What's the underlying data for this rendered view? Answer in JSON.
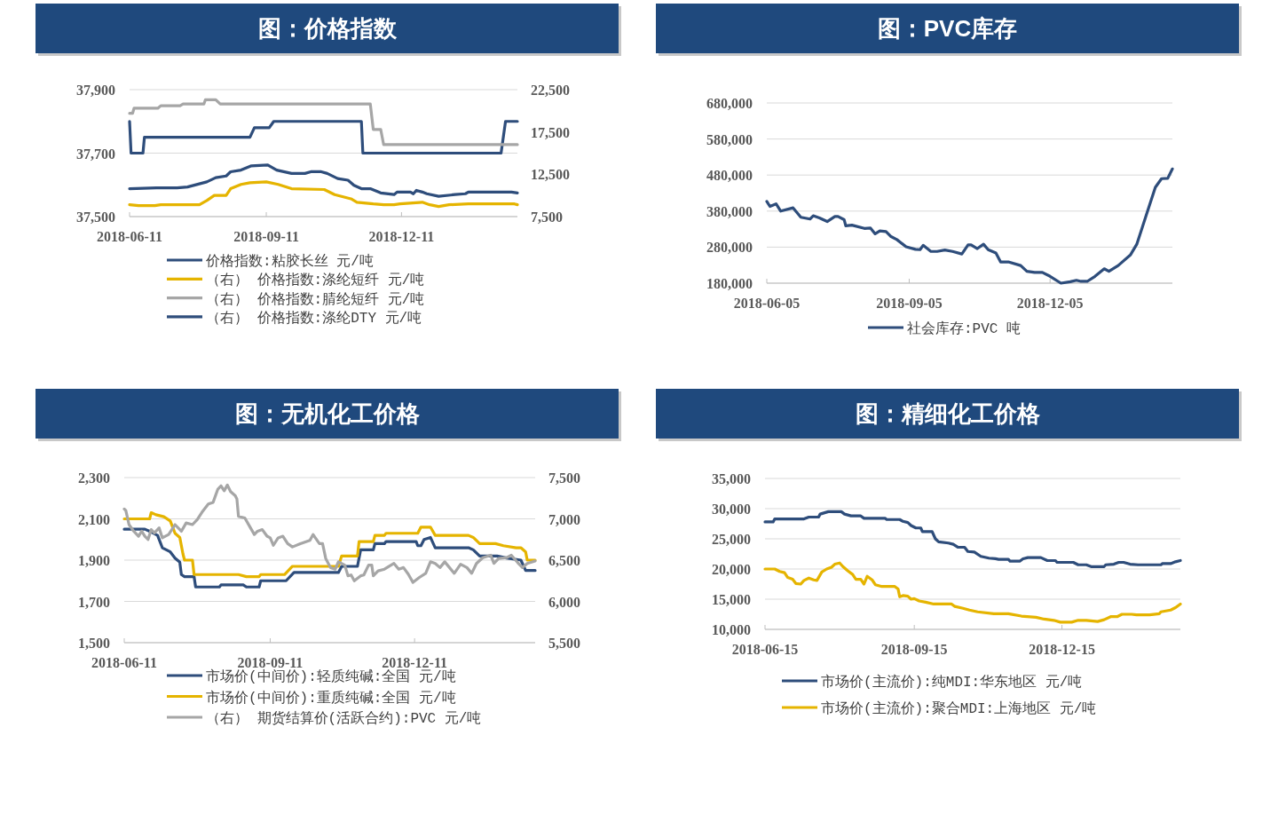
{
  "chart_data": [
    {
      "type": "line",
      "title": "图：价格指数",
      "legend": "bottom",
      "grid": "y",
      "xlim": [
        "2018-06-11",
        "2019-02-27"
      ],
      "xticks": [
        "2018-06-11",
        "2018-09-11",
        "2018-12-11"
      ],
      "ylim": [
        37500,
        37900
      ],
      "yticks": [
        {
          "value": 37500,
          "label": "37,500"
        },
        {
          "value": 37700,
          "label": "37,700"
        },
        {
          "value": 37900,
          "label": "37,900"
        }
      ],
      "y2lim": [
        7500,
        22500
      ],
      "y2ticks": [
        {
          "value": 7500,
          "label": "7,500"
        },
        {
          "value": 12500,
          "label": "12,500"
        },
        {
          "value": 17500,
          "label": "17,500"
        },
        {
          "value": 22500,
          "label": "22,500"
        }
      ],
      "series": [
        {
          "name": "价格指数:粘胶长丝 元/吨",
          "color": "#2e4d7b",
          "x": [
            "2018-06-11",
            "2018-06-12",
            "2018-06-20",
            "2018-06-21",
            "2018-08-31",
            "2018-09-03",
            "2018-09-13",
            "2018-09-16",
            "2018-11-14",
            "2018-11-15",
            "2019-02-16",
            "2019-02-19",
            "2019-02-27"
          ],
          "values": [
            37800,
            37700,
            37700,
            37750,
            37750,
            37780,
            37780,
            37800,
            37800,
            37700,
            37700,
            37800,
            37800
          ]
        },
        {
          "name": "（右） 价格指数:涤纶短纤 元/吨",
          "color": "#e5b400",
          "axis": "y2",
          "x": [
            "2018-06-11",
            "2018-06-17",
            "2018-06-28",
            "2018-07-02",
            "2018-07-15",
            "2018-07-20",
            "2018-07-28",
            "2018-08-02",
            "2018-08-07",
            "2018-08-15",
            "2018-08-18",
            "2018-08-25",
            "2018-08-31",
            "2018-09-11",
            "2018-09-19",
            "2018-09-28",
            "2018-10-20",
            "2018-10-27",
            "2018-11-07",
            "2018-11-11",
            "2018-11-22",
            "2018-11-29",
            "2018-12-06",
            "2018-12-10",
            "2018-12-25",
            "2018-12-30",
            "2019-01-05",
            "2019-01-12",
            "2019-01-25",
            "2019-02-08",
            "2019-02-25",
            "2019-02-27"
          ],
          "values": [
            8900,
            8800,
            8800,
            8900,
            8900,
            8900,
            8900,
            9400,
            10000,
            10000,
            10800,
            11300,
            11500,
            11600,
            11300,
            10800,
            10700,
            10100,
            9600,
            9200,
            9000,
            8900,
            8900,
            9000,
            9200,
            8900,
            8700,
            8900,
            9000,
            9000,
            9000,
            8900
          ]
        },
        {
          "name": "（右） 价格指数:腈纶短纤 元/吨",
          "color": "#a6a6a6",
          "axis": "y2",
          "x": [
            "2018-06-11",
            "2018-06-13",
            "2018-06-14",
            "2018-06-30",
            "2018-07-02",
            "2018-07-15",
            "2018-07-17",
            "2018-07-31",
            "2018-08-01",
            "2018-08-08",
            "2018-08-11",
            "2018-11-20",
            "2018-11-22",
            "2018-11-27",
            "2018-11-29",
            "2019-02-27"
          ],
          "values": [
            19700,
            19700,
            20300,
            20300,
            20600,
            20600,
            20800,
            20800,
            21300,
            21300,
            20800,
            20800,
            17800,
            17800,
            16000,
            16000
          ]
        },
        {
          "name": "（右） 价格指数:涤纶DTY 元/吨",
          "color": "#2e4d7b",
          "axis": "y2",
          "x": [
            "2018-06-11",
            "2018-06-29",
            "2018-07-13",
            "2018-07-20",
            "2018-08-02",
            "2018-08-08",
            "2018-08-15",
            "2018-08-18",
            "2018-08-25",
            "2018-09-01",
            "2018-09-12",
            "2018-09-18",
            "2018-09-28",
            "2018-10-07",
            "2018-10-11",
            "2018-10-18",
            "2018-10-22",
            "2018-10-29",
            "2018-11-05",
            "2018-11-09",
            "2018-11-14",
            "2018-11-20",
            "2018-11-27",
            "2018-12-06",
            "2018-12-08",
            "2018-12-17",
            "2018-12-19",
            "2018-12-21",
            "2018-12-25",
            "2018-12-28",
            "2019-01-05",
            "2019-01-16",
            "2019-01-23",
            "2019-01-25",
            "2019-02-08",
            "2019-02-23",
            "2019-02-27"
          ],
          "values": [
            10800,
            10900,
            10900,
            11000,
            11600,
            12100,
            12300,
            12800,
            13000,
            13500,
            13600,
            13000,
            12600,
            12600,
            12800,
            12800,
            12600,
            12000,
            11800,
            11200,
            10800,
            10800,
            10300,
            10100,
            10400,
            10400,
            10200,
            10600,
            10400,
            10200,
            9900,
            10100,
            10200,
            10400,
            10400,
            10400,
            10300
          ]
        }
      ]
    },
    {
      "type": "line",
      "title": "图：PVC库存",
      "legend": "bottom",
      "grid": "y",
      "xlim": [
        "2018-06-05",
        "2019-02-22"
      ],
      "xticks": [
        "2018-06-05",
        "2018-09-05",
        "2018-12-05"
      ],
      "ylim": [
        180000,
        680000
      ],
      "yticks": [
        {
          "value": 180000,
          "label": "180,000"
        },
        {
          "value": 280000,
          "label": "280,000"
        },
        {
          "value": 380000,
          "label": "380,000"
        },
        {
          "value": 480000,
          "label": "480,000"
        },
        {
          "value": 580000,
          "label": "580,000"
        },
        {
          "value": 680000,
          "label": "680,000"
        }
      ],
      "series": [
        {
          "name": "社会库存:PVC 吨",
          "color": "#2e4d7b",
          "x": [
            "2018-06-05",
            "2018-06-07",
            "2018-06-11",
            "2018-06-14",
            "2018-06-22",
            "2018-06-27",
            "2018-07-03",
            "2018-07-05",
            "2018-07-09",
            "2018-07-14",
            "2018-07-19",
            "2018-07-21",
            "2018-07-25",
            "2018-07-26",
            "2018-07-30",
            "2018-08-07",
            "2018-08-11",
            "2018-08-14",
            "2018-08-17",
            "2018-08-21",
            "2018-08-24",
            "2018-08-28",
            "2018-09-03",
            "2018-09-09",
            "2018-09-12",
            "2018-09-14",
            "2018-09-19",
            "2018-09-23",
            "2018-09-28",
            "2018-10-03",
            "2018-10-09",
            "2018-10-13",
            "2018-10-15",
            "2018-10-19",
            "2018-10-23",
            "2018-10-26",
            "2018-10-31",
            "2018-11-03",
            "2018-11-08",
            "2018-11-16",
            "2018-11-20",
            "2018-11-25",
            "2018-11-30",
            "2018-12-05",
            "2018-12-12",
            "2018-12-18",
            "2018-12-22",
            "2018-12-25",
            "2018-12-29",
            "2019-01-03",
            "2019-01-09",
            "2019-01-12",
            "2019-01-18",
            "2019-01-26",
            "2019-01-30",
            "2019-02-05",
            "2019-02-11",
            "2019-02-15",
            "2019-02-19",
            "2019-02-22"
          ],
          "values": [
            407000,
            393000,
            400000,
            380000,
            389000,
            363000,
            358000,
            367000,
            361000,
            351000,
            365000,
            365000,
            356000,
            339000,
            341000,
            332000,
            333000,
            317000,
            325000,
            323000,
            310000,
            301000,
            281000,
            274000,
            273000,
            285000,
            268000,
            268000,
            272000,
            268000,
            261000,
            286000,
            286000,
            276000,
            288000,
            273000,
            264000,
            239000,
            239000,
            229000,
            213000,
            210000,
            210000,
            199000,
            180000,
            184000,
            188000,
            185000,
            185000,
            199000,
            220000,
            213000,
            229000,
            259000,
            288000,
            367000,
            446000,
            470000,
            471000,
            497000
          ]
        }
      ]
    },
    {
      "type": "line",
      "title": "图：无机化工价格",
      "legend": "bottom",
      "grid": "y",
      "xlim": [
        "2018-06-11",
        "2019-02-25"
      ],
      "xticks": [
        "2018-06-11",
        "2018-09-11",
        "2018-12-11"
      ],
      "ylim": [
        1500,
        2300
      ],
      "yticks": [
        {
          "value": 1500,
          "label": "1,500"
        },
        {
          "value": 1700,
          "label": "1,700"
        },
        {
          "value": 1900,
          "label": "1,900"
        },
        {
          "value": 2100,
          "label": "2,100"
        },
        {
          "value": 2300,
          "label": "2,300"
        }
      ],
      "y2lim": [
        5500,
        7500
      ],
      "y2ticks": [
        {
          "value": 5500,
          "label": "5,500"
        },
        {
          "value": 6000,
          "label": "6,000"
        },
        {
          "value": 6500,
          "label": "6,500"
        },
        {
          "value": 7000,
          "label": "7,000"
        },
        {
          "value": 7500,
          "label": "7,500"
        }
      ],
      "series": [
        {
          "name": "市场价(中间价):轻质纯碱:全国 元/吨",
          "color": "#2e4d7b",
          "x": [
            "2018-06-11",
            "2018-06-24",
            "2018-06-27",
            "2018-07-02",
            "2018-07-05",
            "2018-07-10",
            "2018-07-13",
            "2018-07-16",
            "2018-07-17",
            "2018-07-19",
            "2018-07-25",
            "2018-07-26",
            "2018-08-10",
            "2018-08-11",
            "2018-08-25",
            "2018-08-27",
            "2018-09-04",
            "2018-09-05",
            "2018-09-21",
            "2018-09-26",
            "2018-10-24",
            "2018-10-26",
            "2018-11-05",
            "2018-11-07",
            "2018-11-15",
            "2018-11-16",
            "2018-11-22",
            "2018-11-23",
            "2018-12-12",
            "2018-12-13",
            "2018-12-15",
            "2018-12-17",
            "2018-12-21",
            "2018-12-24",
            "2019-01-14",
            "2019-01-17",
            "2019-01-21",
            "2019-02-01",
            "2019-02-07",
            "2019-02-16",
            "2019-02-19",
            "2019-02-25"
          ],
          "values": [
            2050,
            2050,
            2040,
            2020,
            1960,
            1940,
            1910,
            1890,
            1830,
            1820,
            1820,
            1770,
            1770,
            1780,
            1780,
            1770,
            1770,
            1800,
            1800,
            1840,
            1840,
            1870,
            1870,
            1950,
            1950,
            1980,
            1980,
            1990,
            1990,
            1970,
            1970,
            2000,
            2010,
            1960,
            1960,
            1950,
            1920,
            1920,
            1910,
            1900,
            1850,
            1850
          ]
        },
        {
          "name": "市场价(中间价):重质纯碱:全国 元/吨",
          "color": "#e5b400",
          "x": [
            "2018-06-11",
            "2018-06-27",
            "2018-06-28",
            "2018-07-01",
            "2018-07-06",
            "2018-07-10",
            "2018-07-13",
            "2018-07-16",
            "2018-07-18",
            "2018-07-19",
            "2018-07-24",
            "2018-07-25",
            "2018-08-22",
            "2018-08-27",
            "2018-09-04",
            "2018-09-05",
            "2018-09-20",
            "2018-09-25",
            "2018-10-24",
            "2018-10-26",
            "2018-11-05",
            "2018-11-06",
            "2018-11-15",
            "2018-11-16",
            "2018-11-22",
            "2018-11-23",
            "2018-12-13",
            "2018-12-15",
            "2018-12-21",
            "2018-12-24",
            "2019-01-14",
            "2019-01-17",
            "2019-01-21",
            "2019-01-31",
            "2019-02-05",
            "2019-02-13",
            "2019-02-16",
            "2019-02-19",
            "2019-02-20",
            "2019-02-25"
          ],
          "values": [
            2100,
            2100,
            2130,
            2120,
            2110,
            2090,
            2030,
            2010,
            1930,
            1900,
            1900,
            1830,
            1830,
            1820,
            1820,
            1830,
            1830,
            1870,
            1870,
            1920,
            1920,
            1990,
            1990,
            2020,
            2020,
            2030,
            2030,
            2060,
            2060,
            2020,
            2020,
            2010,
            1980,
            1980,
            1970,
            1960,
            1960,
            1940,
            1900,
            1900
          ]
        },
        {
          "name": "（右） 期货结算价(活跃合约):PVC 元/吨",
          "color": "#a6a6a6",
          "axis": "y2",
          "x": [
            "2018-06-11",
            "2018-06-12",
            "2018-06-14",
            "2018-06-17",
            "2018-06-20",
            "2018-06-22",
            "2018-06-24",
            "2018-06-26",
            "2018-06-28",
            "2018-06-30",
            "2018-07-03",
            "2018-07-05",
            "2018-07-09",
            "2018-07-13",
            "2018-07-17",
            "2018-07-20",
            "2018-07-24",
            "2018-07-27",
            "2018-07-30",
            "2018-08-03",
            "2018-08-06",
            "2018-08-09",
            "2018-08-11",
            "2018-08-13",
            "2018-08-15",
            "2018-08-17",
            "2018-08-20",
            "2018-08-21",
            "2018-08-22",
            "2018-08-26",
            "2018-08-29",
            "2018-09-01",
            "2018-09-03",
            "2018-09-06",
            "2018-09-09",
            "2018-09-11",
            "2018-09-13",
            "2018-09-16",
            "2018-09-19",
            "2018-09-22",
            "2018-09-25",
            "2018-09-30",
            "2018-10-06",
            "2018-10-08",
            "2018-10-12",
            "2018-10-14",
            "2018-10-16",
            "2018-10-19",
            "2018-10-22",
            "2018-10-24",
            "2018-10-28",
            "2018-10-30",
            "2018-11-01",
            "2018-11-03",
            "2018-11-07",
            "2018-11-09",
            "2018-11-12",
            "2018-11-14",
            "2018-11-15",
            "2018-11-18",
            "2018-11-22",
            "2018-11-28",
            "2018-12-01",
            "2018-12-04",
            "2018-12-07",
            "2018-12-10",
            "2018-12-14",
            "2018-12-18",
            "2018-12-21",
            "2018-12-24",
            "2018-12-27",
            "2018-12-30",
            "2019-01-02",
            "2019-01-05",
            "2019-01-09",
            "2019-01-13",
            "2019-01-16",
            "2019-01-19",
            "2019-01-23",
            "2019-01-28",
            "2019-01-30",
            "2019-02-02",
            "2019-02-07",
            "2019-02-10",
            "2019-02-14",
            "2019-02-17",
            "2019-02-20",
            "2019-02-25"
          ],
          "values": [
            7120,
            7100,
            6930,
            6850,
            6790,
            6850,
            6790,
            6750,
            6870,
            6830,
            6890,
            6770,
            6810,
            6930,
            6850,
            6950,
            6930,
            6990,
            7080,
            7180,
            7200,
            7360,
            7400,
            7340,
            7410,
            7330,
            7280,
            7240,
            7030,
            7010,
            6910,
            6810,
            6850,
            6870,
            6790,
            6770,
            6680,
            6770,
            6790,
            6700,
            6660,
            6700,
            6740,
            6810,
            6700,
            6700,
            6520,
            6410,
            6390,
            6480,
            6440,
            6310,
            6320,
            6250,
            6310,
            6320,
            6440,
            6440,
            6310,
            6370,
            6390,
            6460,
            6390,
            6410,
            6330,
            6230,
            6290,
            6340,
            6480,
            6460,
            6410,
            6480,
            6410,
            6340,
            6450,
            6410,
            6340,
            6460,
            6530,
            6560,
            6460,
            6520,
            6530,
            6560,
            6470,
            6410,
            6460,
            6490
          ]
        }
      ]
    },
    {
      "type": "line",
      "title": "图：精细化工价格",
      "legend": "bottom",
      "grid": "y",
      "xlim": [
        "2018-06-15",
        "2019-02-26"
      ],
      "xticks": [
        "2018-06-15",
        "2018-09-15",
        "2018-12-15"
      ],
      "ylim": [
        10000,
        35000
      ],
      "yticks": [
        {
          "value": 10000,
          "label": "10,000"
        },
        {
          "value": 15000,
          "label": "15,000"
        },
        {
          "value": 20000,
          "label": "20,000"
        },
        {
          "value": 25000,
          "label": "25,000"
        },
        {
          "value": 30000,
          "label": "30,000"
        },
        {
          "value": 35000,
          "label": "35,000"
        }
      ],
      "series": [
        {
          "name": "市场价(主流价):纯MDI:华东地区 元/吨",
          "color": "#2e4d7b",
          "x": [
            "2018-06-15",
            "2018-06-20",
            "2018-06-21",
            "2018-07-09",
            "2018-07-12",
            "2018-07-18",
            "2018-07-19",
            "2018-07-24",
            "2018-08-01",
            "2018-08-03",
            "2018-08-07",
            "2018-08-13",
            "2018-08-15",
            "2018-08-28",
            "2018-08-29",
            "2018-09-06",
            "2018-09-08",
            "2018-09-11",
            "2018-09-13",
            "2018-09-16",
            "2018-09-19",
            "2018-09-20",
            "2018-09-26",
            "2018-09-28",
            "2018-09-30",
            "2018-10-06",
            "2018-10-09",
            "2018-10-12",
            "2018-10-16",
            "2018-10-18",
            "2018-10-22",
            "2018-10-26",
            "2018-10-31",
            "2018-11-04",
            "2018-11-06",
            "2018-11-12",
            "2018-11-13",
            "2018-11-19",
            "2018-11-21",
            "2018-11-24",
            "2018-12-02",
            "2018-12-06",
            "2018-12-11",
            "2018-12-12",
            "2018-12-22",
            "2018-12-25",
            "2018-12-30",
            "2019-01-02",
            "2019-01-10",
            "2019-01-11",
            "2019-01-16",
            "2019-01-19",
            "2019-01-22",
            "2019-01-26",
            "2019-01-31",
            "2019-02-14",
            "2019-02-15",
            "2019-02-20",
            "2019-02-23",
            "2019-02-26"
          ],
          "values": [
            27800,
            27800,
            28300,
            28300,
            28600,
            28600,
            29100,
            29500,
            29500,
            29100,
            28800,
            28800,
            28400,
            28400,
            28200,
            28200,
            27900,
            27700,
            27200,
            26800,
            26800,
            26200,
            26200,
            25000,
            24500,
            24300,
            24100,
            23600,
            23600,
            22900,
            22800,
            22100,
            21800,
            21700,
            21600,
            21600,
            21300,
            21300,
            21700,
            21900,
            21900,
            21400,
            21400,
            21100,
            21100,
            20700,
            20700,
            20400,
            20400,
            20700,
            20800,
            21100,
            21100,
            20800,
            20700,
            20700,
            20900,
            20900,
            21200,
            21400
          ]
        },
        {
          "name": "市场价(主流价):聚合MDI:上海地区 元/吨",
          "color": "#e5b400",
          "x": [
            "2018-06-15",
            "2018-06-21",
            "2018-06-24",
            "2018-06-27",
            "2018-06-29",
            "2018-07-02",
            "2018-07-04",
            "2018-07-07",
            "2018-07-09",
            "2018-07-12",
            "2018-07-15",
            "2018-07-17",
            "2018-07-20",
            "2018-07-23",
            "2018-07-26",
            "2018-07-28",
            "2018-07-31",
            "2018-08-02",
            "2018-08-05",
            "2018-08-08",
            "2018-08-10",
            "2018-08-13",
            "2018-08-15",
            "2018-08-17",
            "2018-08-20",
            "2018-08-22",
            "2018-08-26",
            "2018-09-03",
            "2018-09-05",
            "2018-09-06",
            "2018-09-08",
            "2018-09-11",
            "2018-09-13",
            "2018-09-15",
            "2018-09-18",
            "2018-09-22",
            "2018-09-27",
            "2018-10-08",
            "2018-10-10",
            "2018-10-15",
            "2018-10-19",
            "2018-10-24",
            "2018-11-03",
            "2018-11-12",
            "2018-11-20",
            "2018-11-29",
            "2018-12-04",
            "2018-12-10",
            "2018-12-14",
            "2018-12-21",
            "2018-12-25",
            "2018-12-30",
            "2019-01-06",
            "2019-01-10",
            "2019-01-14",
            "2019-01-18",
            "2019-01-21",
            "2019-01-27",
            "2019-01-30",
            "2019-02-07",
            "2019-02-13",
            "2019-02-14",
            "2019-02-20",
            "2019-02-23",
            "2019-02-26"
          ],
          "values": [
            20000,
            20000,
            19600,
            19400,
            18600,
            18300,
            17600,
            17500,
            18100,
            18500,
            18200,
            18100,
            19500,
            20000,
            20300,
            20800,
            21000,
            20400,
            19700,
            19100,
            18300,
            18300,
            17500,
            18800,
            18200,
            17400,
            17100,
            17100,
            16700,
            15400,
            15600,
            15500,
            15000,
            15100,
            14700,
            14500,
            14200,
            14200,
            13800,
            13500,
            13200,
            12900,
            12600,
            12600,
            12200,
            12000,
            11700,
            11500,
            11200,
            11200,
            11500,
            11500,
            11300,
            11600,
            12100,
            12100,
            12500,
            12500,
            12400,
            12400,
            12600,
            12900,
            13200,
            13600,
            14200
          ]
        }
      ]
    }
  ]
}
